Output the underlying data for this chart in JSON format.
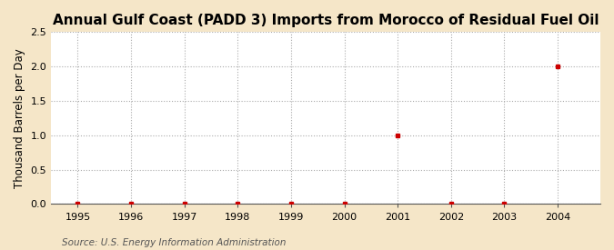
{
  "title": "Annual Gulf Coast (PADD 3) Imports from Morocco of Residual Fuel Oil",
  "ylabel": "Thousand Barrels per Day",
  "source": "Source: U.S. Energy Information Administration",
  "fig_background_color": "#f5e6c8",
  "plot_background_color": "#ffffff",
  "x_data": [
    1995,
    1996,
    1997,
    1998,
    1999,
    2000,
    2001,
    2002,
    2003,
    2004
  ],
  "y_data": [
    0.0,
    0.0,
    0.0,
    0.0,
    0.0,
    0.0,
    1.0,
    0.0,
    0.0,
    2.0
  ],
  "xlim": [
    1994.5,
    2004.8
  ],
  "ylim": [
    0.0,
    2.5
  ],
  "yticks": [
    0.0,
    0.5,
    1.0,
    1.5,
    2.0,
    2.5
  ],
  "xticks": [
    1995,
    1996,
    1997,
    1998,
    1999,
    2000,
    2001,
    2002,
    2003,
    2004
  ],
  "marker_color": "#cc0000",
  "marker": "s",
  "marker_size": 3.5,
  "grid_color": "#aaaaaa",
  "grid_style": ":",
  "title_fontsize": 11,
  "label_fontsize": 8.5,
  "tick_fontsize": 8,
  "source_fontsize": 7.5
}
